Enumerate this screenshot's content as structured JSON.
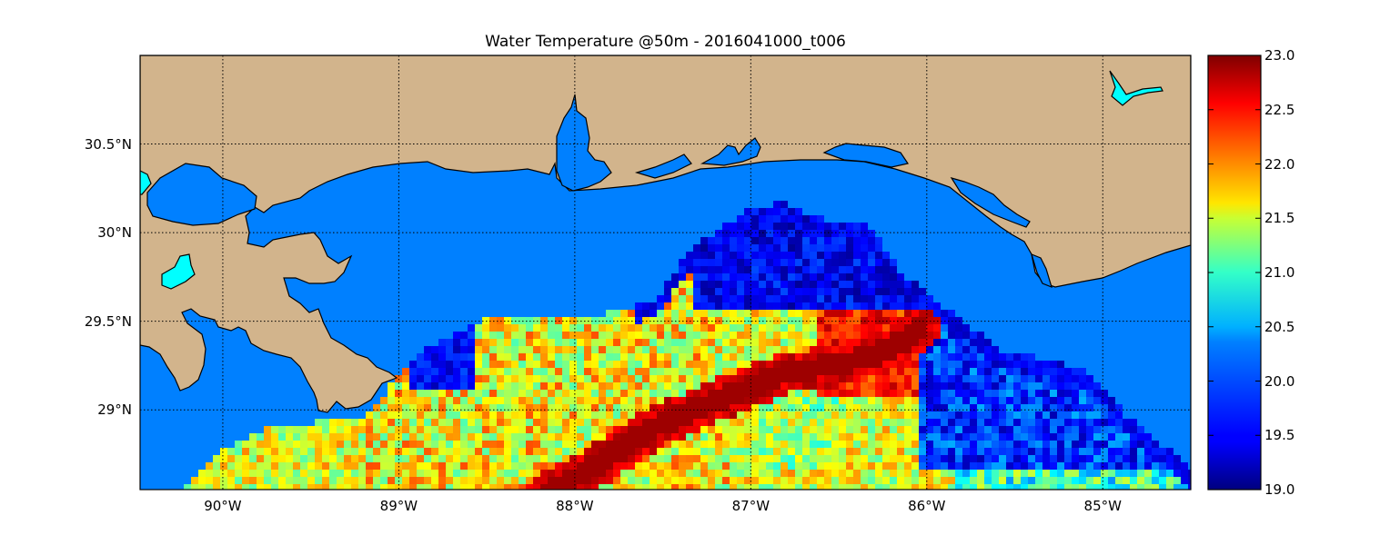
{
  "figure": {
    "title": "Water Temperature @50m - 2016041000_t006"
  },
  "map": {
    "region": "Northern Gulf of Mexico",
    "lon_range": [
      -90.47,
      -84.5
    ],
    "lat_range": [
      28.55,
      31.0
    ],
    "grid": "dotted",
    "land_color": "#d2b48c",
    "masked_water_color": "#0080ff",
    "lake_color": "#00ffff",
    "lat_ticks": [
      {
        "value": 30.5,
        "label": "30.5°N"
      },
      {
        "value": 30.0,
        "label": "30°N"
      },
      {
        "value": 29.5,
        "label": "29.5°N"
      },
      {
        "value": 29.0,
        "label": "29°N"
      }
    ],
    "lon_ticks": [
      {
        "value": -90,
        "label": "90°W"
      },
      {
        "value": -89,
        "label": "89°W"
      },
      {
        "value": -88,
        "label": "88°W"
      },
      {
        "value": -87,
        "label": "87°W"
      },
      {
        "value": -86,
        "label": "86°W"
      },
      {
        "value": -85,
        "label": "85°W"
      }
    ]
  },
  "colorbar": {
    "colormap": "jet",
    "min": 19.0,
    "max": 23.0,
    "ticks": [
      "23.0",
      "22.5",
      "22.0",
      "21.5",
      "21.0",
      "20.5",
      "20.0",
      "19.5",
      "19.0"
    ],
    "tick_values": [
      23.0,
      22.5,
      22.0,
      21.5,
      21.0,
      20.5,
      20.0,
      19.5,
      19.0
    ]
  }
}
